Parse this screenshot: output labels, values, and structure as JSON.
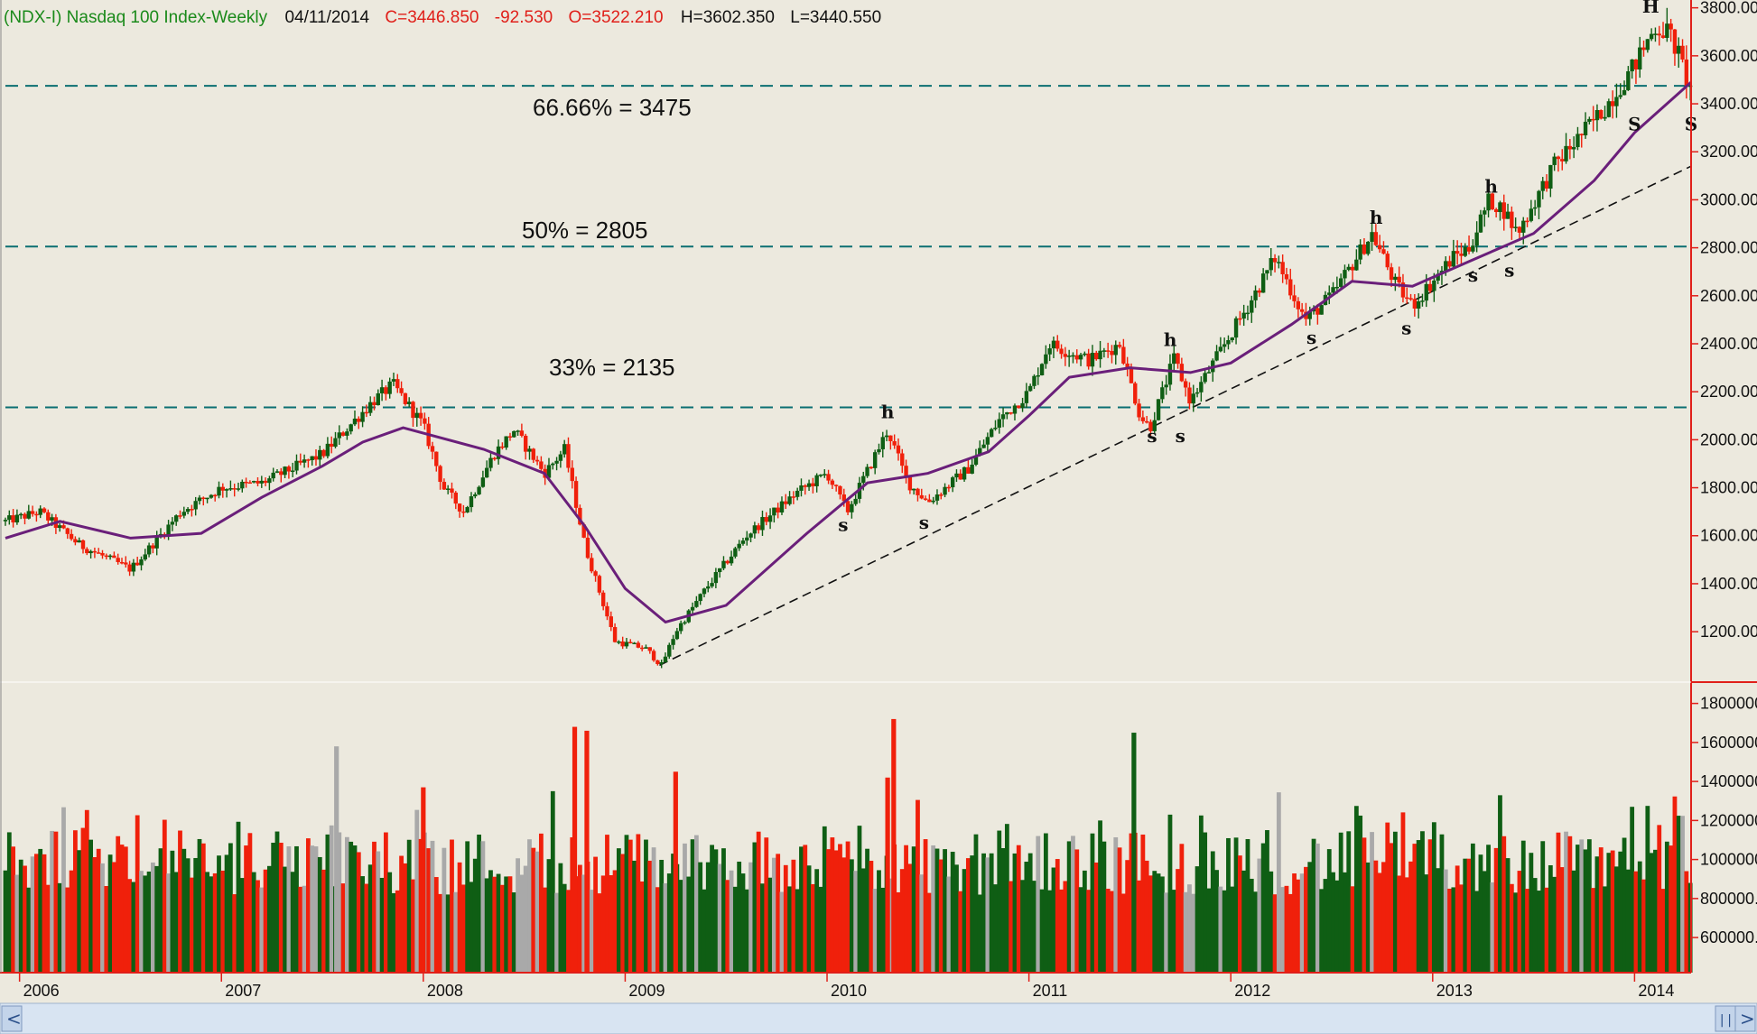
{
  "header": {
    "symbol_title": "(NDX-I) Nasdaq 100 Index-Weekly",
    "date": "04/11/2014",
    "close": "C=3446.850",
    "change": "-92.530",
    "open": "O=3522.210",
    "high": "H=3602.350",
    "low": "L=3440.550"
  },
  "colors": {
    "background": "#ece9de",
    "up_bar": "#0f5e14",
    "down_bar": "#f0200b",
    "neutral_bar": "#a9a9a9",
    "moving_average": "#6a1f7a",
    "fib_line": "#0b6f72",
    "title_green": "#1a8a1a",
    "value_red": "#e0201a",
    "axis_red": "#e0201a"
  },
  "annotations": {
    "fib_66": "66.66% = 3475",
    "fib_50": "50% = 2805",
    "fib_33": "33% = 2135"
  },
  "chart_data": {
    "type": "candlestick",
    "title": "(NDX-I) Nasdaq 100 Index-Weekly",
    "x_range": [
      2005.93,
      2014.28
    ],
    "x_tick_labels": [
      "2006",
      "2007",
      "2008",
      "2009",
      "2010",
      "2011",
      "2012",
      "2013",
      "2014"
    ],
    "price_axis": {
      "ylim": [
        1020,
        3810
      ],
      "tick_labels": [
        "3800.00",
        "3600.00",
        "3400.00",
        "3200.00",
        "3000.00",
        "2800.00",
        "2600.00",
        "2400.00",
        "2200.00",
        "2000.00",
        "1800.00",
        "1600.00",
        "1400.00",
        "1200.00"
      ],
      "tick_values": [
        3800,
        3600,
        3400,
        3200,
        3000,
        2800,
        2600,
        2400,
        2200,
        2000,
        1800,
        1600,
        1400,
        1200
      ]
    },
    "volume_axis": {
      "ylim": [
        420000,
        1900000
      ],
      "tick_labels": [
        "1800000",
        "1600000",
        "1400000",
        "1200000",
        "1000000",
        "800000.",
        "600000."
      ],
      "tick_values": [
        1800000,
        1600000,
        1400000,
        1200000,
        1000000,
        800000,
        600000
      ]
    },
    "price_path": [
      [
        2005.93,
        1660
      ],
      [
        2006.1,
        1700
      ],
      [
        2006.3,
        1560
      ],
      [
        2006.55,
        1460
      ],
      [
        2006.8,
        1700
      ],
      [
        2007.0,
        1800
      ],
      [
        2007.2,
        1820
      ],
      [
        2007.5,
        1940
      ],
      [
        2007.75,
        2160
      ],
      [
        2007.85,
        2230
      ],
      [
        2008.0,
        2060
      ],
      [
        2008.1,
        1800
      ],
      [
        2008.2,
        1700
      ],
      [
        2008.35,
        1940
      ],
      [
        2008.45,
        2040
      ],
      [
        2008.6,
        1860
      ],
      [
        2008.7,
        1960
      ],
      [
        2008.8,
        1560
      ],
      [
        2008.95,
        1160
      ],
      [
        2009.1,
        1130
      ],
      [
        2009.18,
        1060
      ],
      [
        2009.25,
        1200
      ],
      [
        2009.4,
        1380
      ],
      [
        2009.6,
        1600
      ],
      [
        2009.85,
        1780
      ],
      [
        2010.0,
        1860
      ],
      [
        2010.1,
        1700
      ],
      [
        2010.3,
        2040
      ],
      [
        2010.4,
        1820
      ],
      [
        2010.5,
        1740
      ],
      [
        2010.7,
        1880
      ],
      [
        2010.85,
        2080
      ],
      [
        2011.0,
        2200
      ],
      [
        2011.1,
        2400
      ],
      [
        2011.3,
        2330
      ],
      [
        2011.45,
        2400
      ],
      [
        2011.55,
        2100
      ],
      [
        2011.6,
        2050
      ],
      [
        2011.72,
        2340
      ],
      [
        2011.8,
        2160
      ],
      [
        2011.9,
        2300
      ],
      [
        2012.1,
        2580
      ],
      [
        2012.22,
        2760
      ],
      [
        2012.37,
        2500
      ],
      [
        2012.5,
        2600
      ],
      [
        2012.7,
        2860
      ],
      [
        2012.82,
        2640
      ],
      [
        2012.9,
        2560
      ],
      [
        2013.1,
        2760
      ],
      [
        2013.18,
        2800
      ],
      [
        2013.28,
        3000
      ],
      [
        2013.35,
        2960
      ],
      [
        2013.42,
        2860
      ],
      [
        2013.6,
        3140
      ],
      [
        2013.85,
        3380
      ],
      [
        2014.0,
        3560
      ],
      [
        2014.1,
        3720
      ],
      [
        2014.17,
        3700
      ],
      [
        2014.22,
        3600
      ],
      [
        2014.28,
        3446.85
      ]
    ],
    "moving_average": [
      [
        2005.93,
        1590
      ],
      [
        2006.2,
        1660
      ],
      [
        2006.55,
        1590
      ],
      [
        2006.9,
        1610
      ],
      [
        2007.2,
        1760
      ],
      [
        2007.5,
        1890
      ],
      [
        2007.7,
        1990
      ],
      [
        2007.9,
        2050
      ],
      [
        2008.3,
        1960
      ],
      [
        2008.6,
        1860
      ],
      [
        2008.8,
        1640
      ],
      [
        2009.0,
        1380
      ],
      [
        2009.2,
        1240
      ],
      [
        2009.5,
        1310
      ],
      [
        2009.9,
        1610
      ],
      [
        2010.2,
        1820
      ],
      [
        2010.5,
        1860
      ],
      [
        2010.8,
        1950
      ],
      [
        2011.0,
        2100
      ],
      [
        2011.2,
        2260
      ],
      [
        2011.5,
        2300
      ],
      [
        2011.8,
        2280
      ],
      [
        2012.0,
        2320
      ],
      [
        2012.3,
        2480
      ],
      [
        2012.6,
        2660
      ],
      [
        2012.9,
        2640
      ],
      [
        2013.2,
        2750
      ],
      [
        2013.5,
        2860
      ],
      [
        2013.8,
        3080
      ],
      [
        2014.0,
        3280
      ],
      [
        2014.28,
        3490
      ]
    ],
    "trendline": [
      [
        2009.17,
        1060
      ],
      [
        2014.28,
        3140
      ]
    ],
    "fib_levels": [
      {
        "label": "66.66% = 3475",
        "value": 3475
      },
      {
        "label": "50% = 2805",
        "value": 2805
      },
      {
        "label": "33% = 2135",
        "value": 2135
      }
    ],
    "pattern_labels": [
      {
        "text": "h",
        "x": 2010.3,
        "y": 2090
      },
      {
        "text": "s",
        "x": 2010.08,
        "y": 1620
      },
      {
        "text": "s",
        "x": 2010.48,
        "y": 1630
      },
      {
        "text": "h",
        "x": 2011.7,
        "y": 2390
      },
      {
        "text": "s",
        "x": 2011.61,
        "y": 1990
      },
      {
        "text": "s",
        "x": 2011.75,
        "y": 1990
      },
      {
        "text": "h",
        "x": 2012.72,
        "y": 2900
      },
      {
        "text": "s",
        "x": 2012.4,
        "y": 2400
      },
      {
        "text": "s",
        "x": 2012.87,
        "y": 2440
      },
      {
        "text": "h",
        "x": 2013.29,
        "y": 3030
      },
      {
        "text": "s",
        "x": 2013.2,
        "y": 2660
      },
      {
        "text": "s",
        "x": 2013.38,
        "y": 2680
      },
      {
        "text": "H",
        "x": 2014.08,
        "y": 3780
      },
      {
        "text": "S",
        "x": 2014.0,
        "y": 3290
      },
      {
        "text": "S",
        "x": 2014.28,
        "y": 3290
      }
    ],
    "volume_spikes": [
      {
        "x": 2007.57,
        "value": 1580000
      },
      {
        "x": 2008.75,
        "value": 1680000
      },
      {
        "x": 2008.81,
        "value": 1660000
      },
      {
        "x": 2010.33,
        "value": 1720000
      },
      {
        "x": 2011.52,
        "value": 1650000
      },
      {
        "x": 2009.25,
        "value": 1450000
      },
      {
        "x": 2010.3,
        "value": 1420000
      },
      {
        "x": 2008.0,
        "value": 1370000
      }
    ]
  },
  "scrollbar": {
    "left_arrow": "<",
    "right_arrow": ">",
    "thumb_glyph": "|||"
  }
}
